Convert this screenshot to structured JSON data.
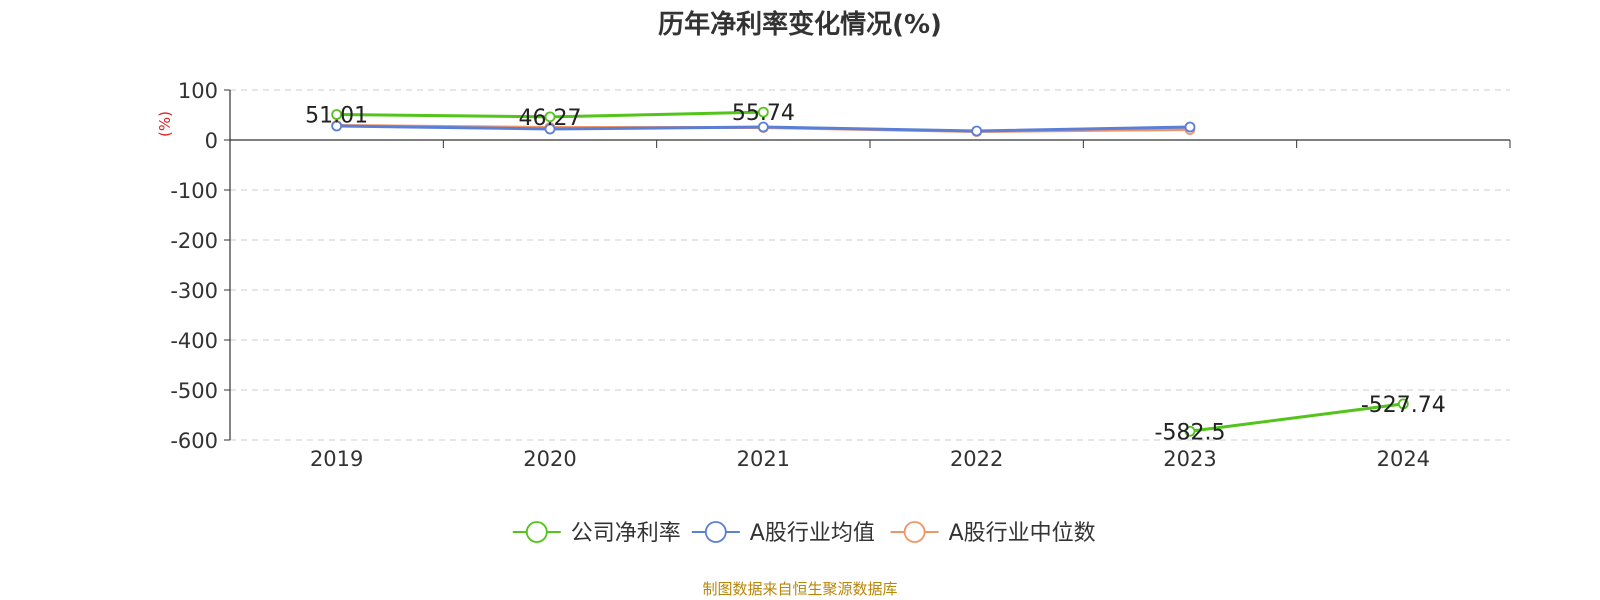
{
  "chart_data": {
    "type": "line",
    "title": "历年净利率变化情况(%)",
    "ylabel": "(%)",
    "x": [
      "2019",
      "2020",
      "2021",
      "2022",
      "2023",
      "2024"
    ],
    "ylim": [
      -600,
      100
    ],
    "yticks": [
      100,
      0,
      -100,
      -200,
      -300,
      -400,
      -500,
      -600
    ],
    "grid": true,
    "legend_position": "bottom-center",
    "series": [
      {
        "name": "公司净利率",
        "color": "#52c41a",
        "values": [
          51.01,
          46.27,
          55.74,
          null,
          -582.5,
          -527.74
        ],
        "labels": [
          "51.01",
          "46.27",
          "55.74",
          "",
          "-582.5",
          "-527.74"
        ]
      },
      {
        "name": "A股行业均值",
        "color": "#5b7fd6",
        "values": [
          28,
          22,
          26,
          18,
          26,
          null
        ]
      },
      {
        "name": "A股行业中位数",
        "color": "#f0956a",
        "values": [
          29,
          25,
          25,
          17,
          21,
          null
        ]
      }
    ]
  },
  "source": "制图数据来自恒生聚源数据库"
}
